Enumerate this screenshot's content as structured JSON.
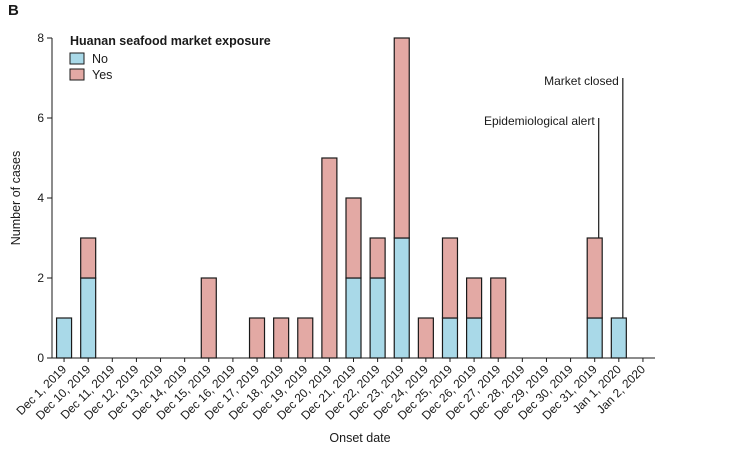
{
  "panel_label": "B",
  "chart_data": {
    "type": "bar",
    "stacked": true,
    "categories": [
      "Dec 1, 2019",
      "Dec 10, 2019",
      "Dec 11, 2019",
      "Dec 12, 2019",
      "Dec 13, 2019",
      "Dec 14, 2019",
      "Dec 15, 2019",
      "Dec 16, 2019",
      "Dec 17, 2019",
      "Dec 18, 2019",
      "Dec 19, 2019",
      "Dec 20, 2019",
      "Dec 21, 2019",
      "Dec 22, 2019",
      "Dec 23, 2019",
      "Dec 24, 2019",
      "Dec 25, 2019",
      "Dec 26, 2019",
      "Dec 27, 2019",
      "Dec 28, 2019",
      "Dec 29, 2019",
      "Dec 30, 2019",
      "Dec 31, 2019",
      "Jan 1, 2020",
      "Jan 2, 2020"
    ],
    "series": [
      {
        "name": "No",
        "color": "#a9d9e8",
        "values": [
          1,
          2,
          0,
          0,
          0,
          0,
          0,
          0,
          0,
          0,
          0,
          0,
          2,
          2,
          3,
          0,
          1,
          1,
          0,
          0,
          0,
          0,
          1,
          1,
          0
        ]
      },
      {
        "name": "Yes",
        "color": "#e3a9a4",
        "values": [
          0,
          1,
          0,
          0,
          0,
          0,
          2,
          0,
          1,
          1,
          1,
          5,
          2,
          1,
          5,
          1,
          2,
          1,
          2,
          0,
          0,
          0,
          2,
          0,
          0
        ]
      }
    ],
    "legend_title": "Huanan seafood market exposure",
    "legend_position": "top-left",
    "xlabel": "Onset date",
    "ylabel": "Number of cases",
    "ylim": [
      0,
      8
    ],
    "yticks": [
      0,
      2,
      4,
      6,
      8
    ],
    "grid": false,
    "annotations": [
      {
        "text": "Epidemiological alert",
        "category": "Dec 31, 2019",
        "line_top_value": 6
      },
      {
        "text": "Market closed",
        "category": "Jan 1, 2020",
        "line_top_value": 7
      }
    ]
  }
}
